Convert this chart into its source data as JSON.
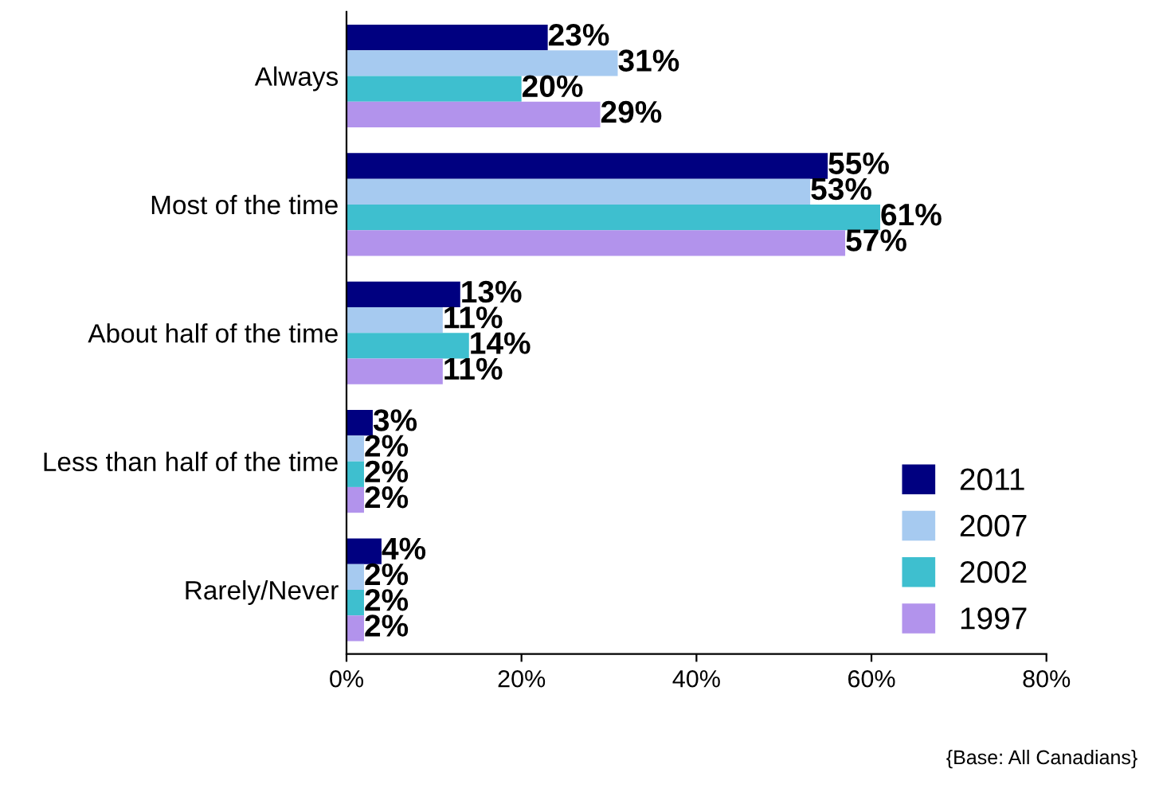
{
  "chart_data": {
    "type": "bar",
    "orientation": "horizontal",
    "categories": [
      "Always",
      "Most of the time",
      "About half of the time",
      "Less than half of the time",
      "Rarely/Never"
    ],
    "series": [
      {
        "name": "2011",
        "color": "#000080",
        "values": [
          23,
          55,
          13,
          3,
          4
        ],
        "value_labels": [
          "23%",
          "55%",
          "13%",
          "3%",
          "4%"
        ]
      },
      {
        "name": "2007",
        "color": "#a6caf0",
        "values": [
          31,
          53,
          11,
          2,
          2
        ],
        "value_labels": [
          "31%",
          "53%",
          "11%",
          "2%",
          "2%"
        ]
      },
      {
        "name": "2002",
        "color": "#3ebfcf",
        "values": [
          20,
          61,
          14,
          2,
          2
        ],
        "value_labels": [
          "20%",
          "61%",
          "14%",
          "2%",
          "2%"
        ]
      },
      {
        "name": "1997",
        "color": "#b293ec",
        "values": [
          29,
          57,
          11,
          2,
          2
        ],
        "value_labels": [
          "29%",
          "57%",
          "11%",
          "2%",
          "2%"
        ]
      }
    ],
    "xlim": [
      0,
      80
    ],
    "xticks": [
      {
        "value": 0,
        "label": "0%"
      },
      {
        "value": 20,
        "label": "20%"
      },
      {
        "value": 40,
        "label": "40%"
      },
      {
        "value": 60,
        "label": "60%"
      },
      {
        "value": 80,
        "label": "80%"
      }
    ],
    "grid": false,
    "legend": "bottom right",
    "annotations": [
      "{Base: All Canadians}"
    ]
  }
}
